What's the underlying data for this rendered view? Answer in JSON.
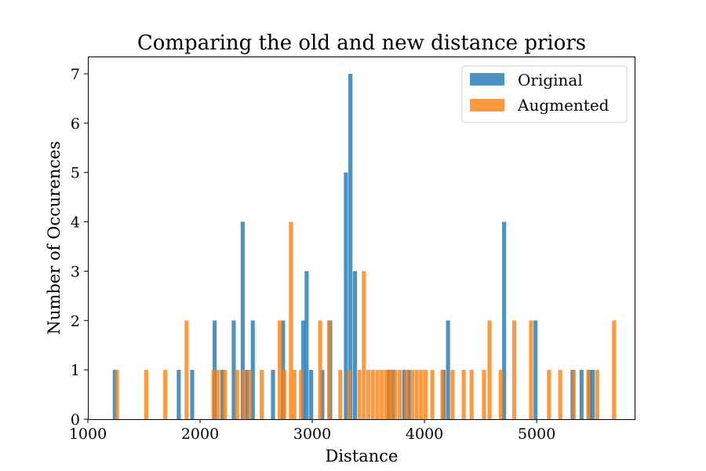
{
  "chart_data": {
    "type": "histogram",
    "title": "Comparing the old and new distance priors",
    "xlabel": "Distance",
    "ylabel": "Number of Occurences",
    "xlim": [
      1000,
      5880
    ],
    "ylim": [
      0,
      7.35
    ],
    "x_ticks": [
      1000,
      2000,
      3000,
      4000,
      5000
    ],
    "y_ticks": [
      0,
      1,
      2,
      3,
      4,
      5,
      6,
      7
    ],
    "bin_width": 36,
    "legend_position": "top-right",
    "series": [
      {
        "name": "Original",
        "color": "#1f77b4",
        "opacity": 0.8,
        "bars": [
          {
            "x": 1240,
            "y": 1
          },
          {
            "x": 1810,
            "y": 1
          },
          {
            "x": 1930,
            "y": 1
          },
          {
            "x": 2130,
            "y": 2
          },
          {
            "x": 2200,
            "y": 1
          },
          {
            "x": 2300,
            "y": 2
          },
          {
            "x": 2380,
            "y": 4
          },
          {
            "x": 2420,
            "y": 1
          },
          {
            "x": 2470,
            "y": 2
          },
          {
            "x": 2650,
            "y": 1
          },
          {
            "x": 2740,
            "y": 2
          },
          {
            "x": 2920,
            "y": 2
          },
          {
            "x": 2950,
            "y": 3
          },
          {
            "x": 2990,
            "y": 1
          },
          {
            "x": 3090,
            "y": 1
          },
          {
            "x": 3160,
            "y": 2
          },
          {
            "x": 3300,
            "y": 5
          },
          {
            "x": 3340,
            "y": 7
          },
          {
            "x": 3380,
            "y": 3
          },
          {
            "x": 3680,
            "y": 1
          },
          {
            "x": 3720,
            "y": 1
          },
          {
            "x": 3820,
            "y": 1
          },
          {
            "x": 3860,
            "y": 1
          },
          {
            "x": 4170,
            "y": 1
          },
          {
            "x": 4210,
            "y": 2
          },
          {
            "x": 4710,
            "y": 4
          },
          {
            "x": 4990,
            "y": 2
          },
          {
            "x": 5320,
            "y": 1
          },
          {
            "x": 5400,
            "y": 1
          },
          {
            "x": 5470,
            "y": 1
          },
          {
            "x": 5500,
            "y": 1
          }
        ]
      },
      {
        "name": "Augmented",
        "color": "#ff7f0e",
        "opacity": 0.8,
        "bars": [
          {
            "x": 1260,
            "y": 1
          },
          {
            "x": 1520,
            "y": 1
          },
          {
            "x": 1690,
            "y": 1
          },
          {
            "x": 1880,
            "y": 2
          },
          {
            "x": 2120,
            "y": 1
          },
          {
            "x": 2160,
            "y": 1
          },
          {
            "x": 2220,
            "y": 1
          },
          {
            "x": 2330,
            "y": 1
          },
          {
            "x": 2390,
            "y": 1
          },
          {
            "x": 2440,
            "y": 1
          },
          {
            "x": 2550,
            "y": 1
          },
          {
            "x": 2710,
            "y": 2
          },
          {
            "x": 2750,
            "y": 1
          },
          {
            "x": 2810,
            "y": 4
          },
          {
            "x": 2840,
            "y": 1
          },
          {
            "x": 2900,
            "y": 1
          },
          {
            "x": 3070,
            "y": 2
          },
          {
            "x": 3150,
            "y": 2
          },
          {
            "x": 3250,
            "y": 1
          },
          {
            "x": 3330,
            "y": 1
          },
          {
            "x": 3420,
            "y": 1
          },
          {
            "x": 3460,
            "y": 3
          },
          {
            "x": 3500,
            "y": 1
          },
          {
            "x": 3540,
            "y": 1
          },
          {
            "x": 3580,
            "y": 1
          },
          {
            "x": 3620,
            "y": 1
          },
          {
            "x": 3660,
            "y": 1
          },
          {
            "x": 3700,
            "y": 1
          },
          {
            "x": 3740,
            "y": 1
          },
          {
            "x": 3780,
            "y": 1
          },
          {
            "x": 3840,
            "y": 1
          },
          {
            "x": 3890,
            "y": 1
          },
          {
            "x": 3930,
            "y": 1
          },
          {
            "x": 3970,
            "y": 1
          },
          {
            "x": 4010,
            "y": 1
          },
          {
            "x": 4070,
            "y": 1
          },
          {
            "x": 4160,
            "y": 1
          },
          {
            "x": 4250,
            "y": 1
          },
          {
            "x": 4350,
            "y": 1
          },
          {
            "x": 4420,
            "y": 1
          },
          {
            "x": 4530,
            "y": 1
          },
          {
            "x": 4580,
            "y": 2
          },
          {
            "x": 4680,
            "y": 1
          },
          {
            "x": 4800,
            "y": 2
          },
          {
            "x": 4950,
            "y": 2
          },
          {
            "x": 5110,
            "y": 1
          },
          {
            "x": 5210,
            "y": 1
          },
          {
            "x": 5330,
            "y": 1
          },
          {
            "x": 5460,
            "y": 1
          },
          {
            "x": 5540,
            "y": 1
          },
          {
            "x": 5690,
            "y": 2
          }
        ]
      }
    ]
  }
}
